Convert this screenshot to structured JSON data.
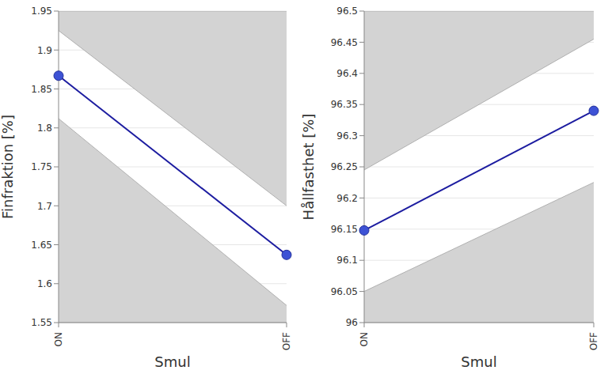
{
  "chart_data": [
    {
      "type": "line",
      "x_label": "Smul",
      "y_label": "Finfraktion [%]",
      "categories": [
        "ON",
        "OFF"
      ],
      "series": [
        {
          "name": "Finfraktion",
          "color": "#1c1ca0",
          "marker": "circle",
          "values": [
            1.867,
            1.637
          ]
        }
      ],
      "confidence_band": {
        "lower": [
          1.812,
          1.572
        ],
        "upper": [
          1.925,
          1.7
        ]
      },
      "ylim": [
        1.55,
        1.95
      ],
      "yticks": [
        1.55,
        1.6,
        1.65,
        1.7,
        1.75,
        1.8,
        1.85,
        1.9,
        1.95
      ],
      "grid": true
    },
    {
      "type": "line",
      "x_label": "Smul",
      "y_label": "Hållfasthet [%]",
      "categories": [
        "ON",
        "OFF"
      ],
      "series": [
        {
          "name": "Hållfasthet",
          "color": "#1c1ca0",
          "marker": "circle",
          "values": [
            96.148,
            96.34
          ]
        }
      ],
      "confidence_band": {
        "lower": [
          96.05,
          96.225
        ],
        "upper": [
          96.245,
          96.455
        ]
      },
      "ylim": [
        96,
        96.5
      ],
      "yticks": [
        96,
        96.05,
        96.1,
        96.15,
        96.2,
        96.25,
        96.3,
        96.35,
        96.4,
        96.45,
        96.5
      ],
      "grid": true
    }
  ]
}
